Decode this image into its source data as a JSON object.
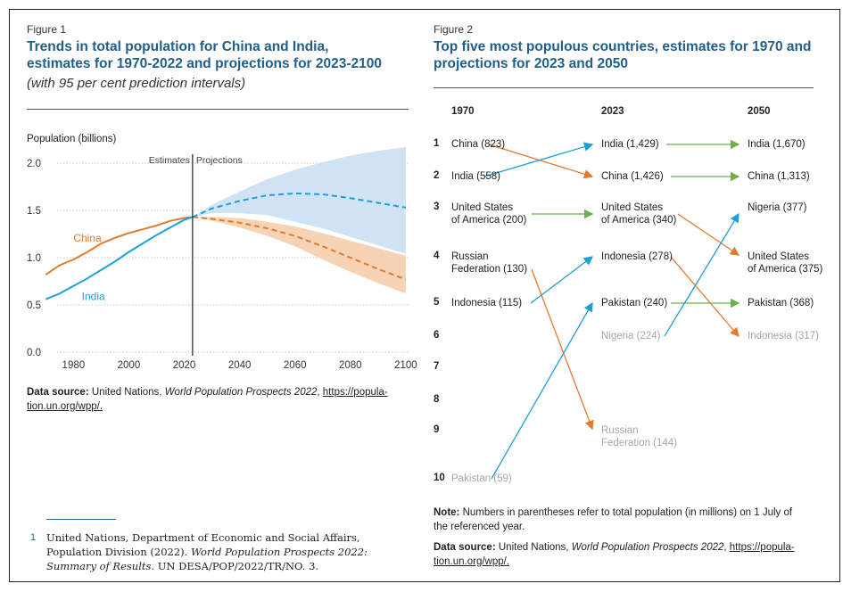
{
  "figure1": {
    "label": "Figure 1",
    "title_line1": "Trends in total population for China and India,",
    "title_line2": "estimates for 1970-2022 and projections for 2023-2100",
    "subtitle": "(with 95 per cent prediction intervals)",
    "source_label": "Data source:",
    "source_text": "United Nations,",
    "source_italic": "World Population Prospects 2022",
    "source_link_1": "https://popula-",
    "source_link_2": "tion.un.org/wpp/."
  },
  "figure2": {
    "label": "Figure 2",
    "title_line1": "Top five most populous countries, estimates for 1970 and",
    "title_line2": "projections for 2023 and 2050",
    "col_headers": [
      "1970",
      "2023",
      "2050"
    ],
    "ranks": [
      "1",
      "2",
      "3",
      "4",
      "5",
      "6",
      "7",
      "8",
      "9",
      "10"
    ],
    "col1970": [
      {
        "text": "China (823)",
        "rank": 1
      },
      {
        "text": "India (558)",
        "rank": 2
      },
      {
        "text": "United States of America (200)",
        "rank": 3
      },
      {
        "text": "Russian Federation (130)",
        "rank": 4
      },
      {
        "text": "Indonesia (115)",
        "rank": 5
      },
      {
        "text": "Pakistan (59)",
        "rank": 10
      }
    ],
    "col2023": [
      {
        "text": "India (1,429)",
        "rank": 1
      },
      {
        "text": "China (1,426)",
        "rank": 2
      },
      {
        "text": "United States of America (340)",
        "rank": 3
      },
      {
        "text": "Indonesia (278)",
        "rank": 4
      },
      {
        "text": "Pakistan (240)",
        "rank": 5
      },
      {
        "text": "Nigeria (224)",
        "rank": 6
      },
      {
        "text": "Russian Federation (144)",
        "rank": 9
      }
    ],
    "col2050": [
      {
        "text": "India (1,670)",
        "rank": 1
      },
      {
        "text": "China (1,313)",
        "rank": 2
      },
      {
        "text": "Nigeria (377)",
        "rank": 3
      },
      {
        "text": "United States of America (375)",
        "rank": 4
      },
      {
        "text": "Pakistan (368)",
        "rank": 5
      },
      {
        "text": "Indonesia (317)",
        "rank": 6
      }
    ],
    "note_label": "Note:",
    "note_line1": "Numbers in parentheses refer to total population (in millions) on 1 July of",
    "note_line2": "the referenced year.",
    "source_label": "Data source:",
    "source_text": "United Nations,",
    "source_italic": "World Population Prospects 2022",
    "source_link_1": "https://popula-",
    "source_link_2": "tion.un.org/wpp/."
  },
  "footnote": {
    "number": "1",
    "line1": "United Nations, Department of Economic and Social Affairs,",
    "line2_a": "Population Division (2022).",
    "line2_b": "World Population Prospects 2022:",
    "line3_a": "Summary of Results",
    "line3_b": ". UN DESA/POP/2022/TR/NO. 3."
  },
  "colors": {
    "china": "#e07b2e",
    "india": "#1ea0d6",
    "china_band": "#f6d3b5",
    "india_band": "#cfe3f5",
    "arrow_green": "#6ab04c",
    "title_blue": "#1f5f8b"
  },
  "chart_data": [
    {
      "type": "line",
      "ylabel": "Population (billions)",
      "annotations": [
        "Estimates",
        "Projections"
      ],
      "xlim": [
        1967,
        2101
      ],
      "ylim": [
        0,
        2.0
      ],
      "xticks": [
        "1980",
        "2000",
        "2020",
        "2040",
        "2060",
        "2080",
        "2100"
      ],
      "yticks": [
        "0.0",
        "0.5",
        "1.0",
        "1.5",
        "2.0"
      ],
      "divider_year": 2023,
      "grid": true,
      "series": [
        {
          "name": "China",
          "x": [
            1970,
            1975,
            1980,
            1985,
            1990,
            1995,
            2000,
            2005,
            2010,
            2015,
            2020,
            2023
          ],
          "values": [
            0.82,
            0.92,
            0.98,
            1.06,
            1.15,
            1.21,
            1.26,
            1.3,
            1.34,
            1.39,
            1.42,
            1.43
          ],
          "projection": {
            "x": [
              2023,
              2030,
              2040,
              2050,
              2060,
              2070,
              2080,
              2090,
              2100
            ],
            "median": [
              1.43,
              1.41,
              1.37,
              1.31,
              1.23,
              1.12,
              1.0,
              0.88,
              0.77
            ],
            "lower": [
              1.43,
              1.39,
              1.32,
              1.23,
              1.12,
              0.98,
              0.85,
              0.73,
              0.62
            ],
            "upper": [
              1.43,
              1.43,
              1.42,
              1.38,
              1.33,
              1.26,
              1.18,
              1.1,
              1.02
            ]
          }
        },
        {
          "name": "India",
          "x": [
            1970,
            1975,
            1980,
            1985,
            1990,
            1995,
            2000,
            2005,
            2010,
            2015,
            2020,
            2023
          ],
          "values": [
            0.56,
            0.62,
            0.7,
            0.78,
            0.87,
            0.96,
            1.06,
            1.15,
            1.24,
            1.32,
            1.4,
            1.43
          ],
          "projection": {
            "x": [
              2023,
              2030,
              2040,
              2050,
              2060,
              2070,
              2080,
              2090,
              2100
            ],
            "median": [
              1.43,
              1.52,
              1.6,
              1.66,
              1.68,
              1.67,
              1.63,
              1.58,
              1.53
            ],
            "lower": [
              1.43,
              1.47,
              1.47,
              1.45,
              1.38,
              1.31,
              1.22,
              1.13,
              1.04
            ],
            "upper": [
              1.43,
              1.56,
              1.7,
              1.83,
              1.93,
              2.01,
              2.08,
              2.13,
              2.17
            ]
          }
        }
      ]
    },
    {
      "type": "table",
      "columns": [
        "1970",
        "2023",
        "2050"
      ],
      "links": [
        {
          "from_col": 0,
          "from_rank": 1,
          "to_col": 1,
          "to_rank": 2,
          "color": "#e07b2e"
        },
        {
          "from_col": 0,
          "from_rank": 2,
          "to_col": 1,
          "to_rank": 1,
          "color": "#1ea0d6"
        },
        {
          "from_col": 0,
          "from_rank": 3,
          "to_col": 1,
          "to_rank": 3,
          "color": "#6ab04c"
        },
        {
          "from_col": 0,
          "from_rank": 4,
          "to_col": 1,
          "to_rank": 9,
          "color": "#e07b2e"
        },
        {
          "from_col": 0,
          "from_rank": 5,
          "to_col": 1,
          "to_rank": 4,
          "color": "#1ea0d6"
        },
        {
          "from_col": 0,
          "from_rank": 10,
          "to_col": 1,
          "to_rank": 5,
          "color": "#1ea0d6"
        },
        {
          "from_col": 1,
          "from_rank": 1,
          "to_col": 2,
          "to_rank": 1,
          "color": "#6ab04c"
        },
        {
          "from_col": 1,
          "from_rank": 2,
          "to_col": 2,
          "to_rank": 2,
          "color": "#6ab04c"
        },
        {
          "from_col": 1,
          "from_rank": 3,
          "to_col": 2,
          "to_rank": 4,
          "color": "#e07b2e"
        },
        {
          "from_col": 1,
          "from_rank": 4,
          "to_col": 2,
          "to_rank": 6,
          "color": "#e07b2e"
        },
        {
          "from_col": 1,
          "from_rank": 5,
          "to_col": 2,
          "to_rank": 5,
          "color": "#6ab04c"
        },
        {
          "from_col": 1,
          "from_rank": 6,
          "to_col": 2,
          "to_rank": 3,
          "color": "#1ea0d6"
        }
      ]
    }
  ]
}
